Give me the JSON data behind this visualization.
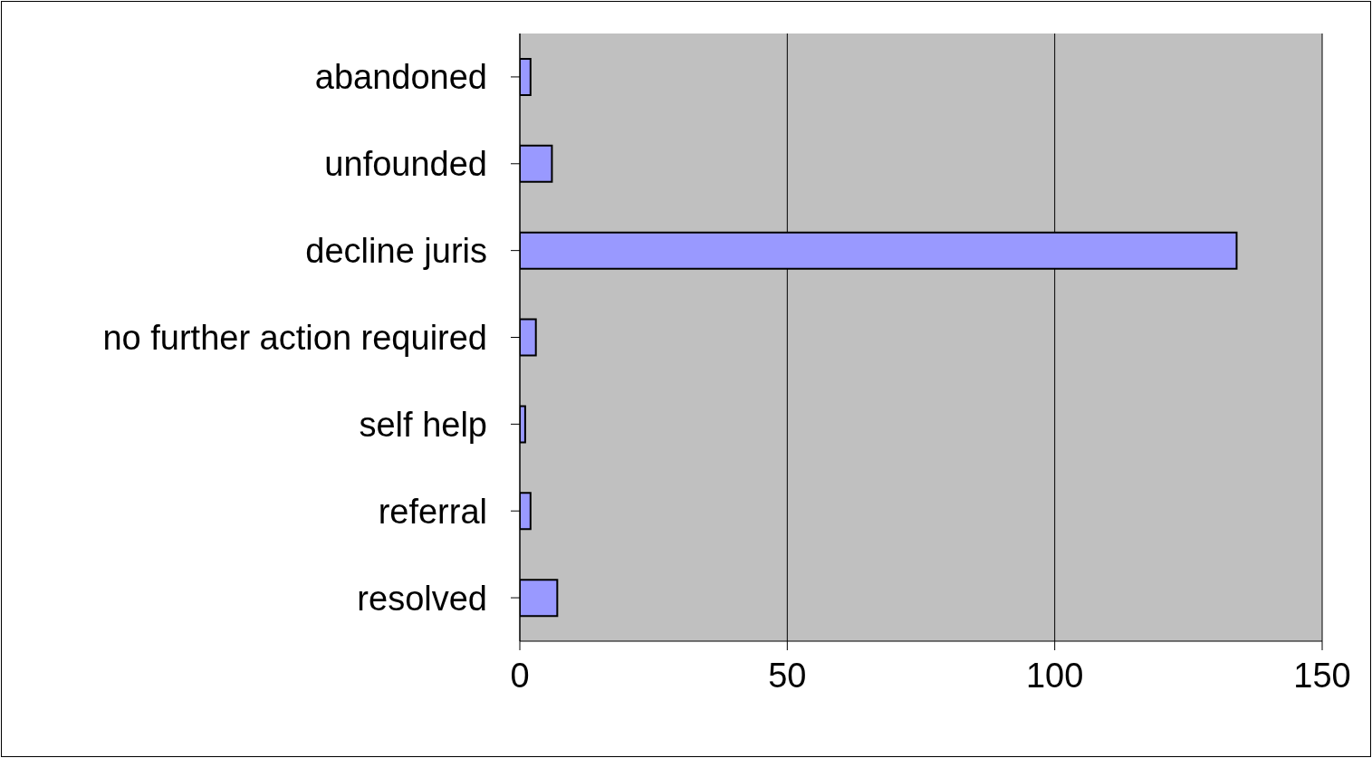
{
  "chart_data": {
    "type": "bar",
    "orientation": "horizontal",
    "categories": [
      "abandoned",
      "unfounded",
      "decline juris",
      "no further action required",
      "self help",
      "referral",
      "resolved"
    ],
    "values": [
      2,
      6,
      134,
      3,
      1,
      2,
      7
    ],
    "color": "#9999ff",
    "xlim": [
      0,
      150
    ],
    "xticks": [
      0,
      50,
      100,
      150
    ],
    "grid": "x"
  }
}
